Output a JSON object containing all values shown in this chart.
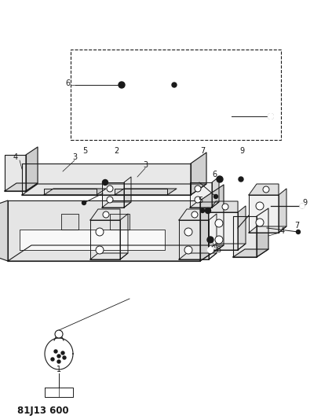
{
  "title": "81J13 600",
  "bg": "#ffffff",
  "lc": "#1a1a1a",
  "figsize": [
    4.09,
    5.33
  ],
  "dpi": 100,
  "gray": "#888888",
  "lgray": "#cccccc"
}
